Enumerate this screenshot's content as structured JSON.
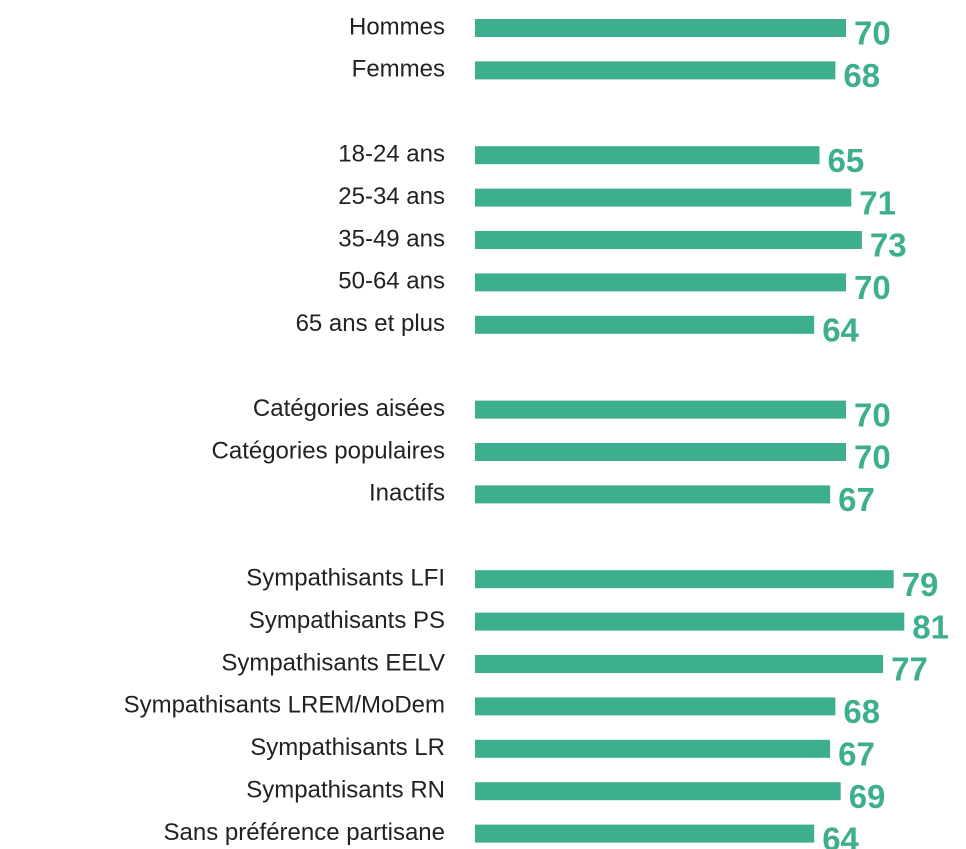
{
  "chart_data": {
    "type": "hbar",
    "color": "#3daf8f",
    "xlim": [
      0,
      100
    ],
    "categories": [
      "Hommes",
      "Femmes",
      null,
      "18-24 ans",
      "25-34 ans",
      "35-49 ans",
      "50-64 ans",
      "65 ans et plus",
      null,
      "Catégories aisées",
      "Catégories populaires",
      "Inactifs",
      null,
      "Sympathisants LFI",
      "Sympathisants PS",
      "Sympathisants EELV",
      "Sympathisants LREM/MoDem",
      "Sympathisants LR",
      "Sympathisants RN",
      "Sans préférence partisane"
    ],
    "values": [
      70,
      68,
      null,
      65,
      71,
      73,
      70,
      64,
      null,
      70,
      70,
      67,
      null,
      79,
      81,
      77,
      68,
      67,
      69,
      64
    ]
  }
}
